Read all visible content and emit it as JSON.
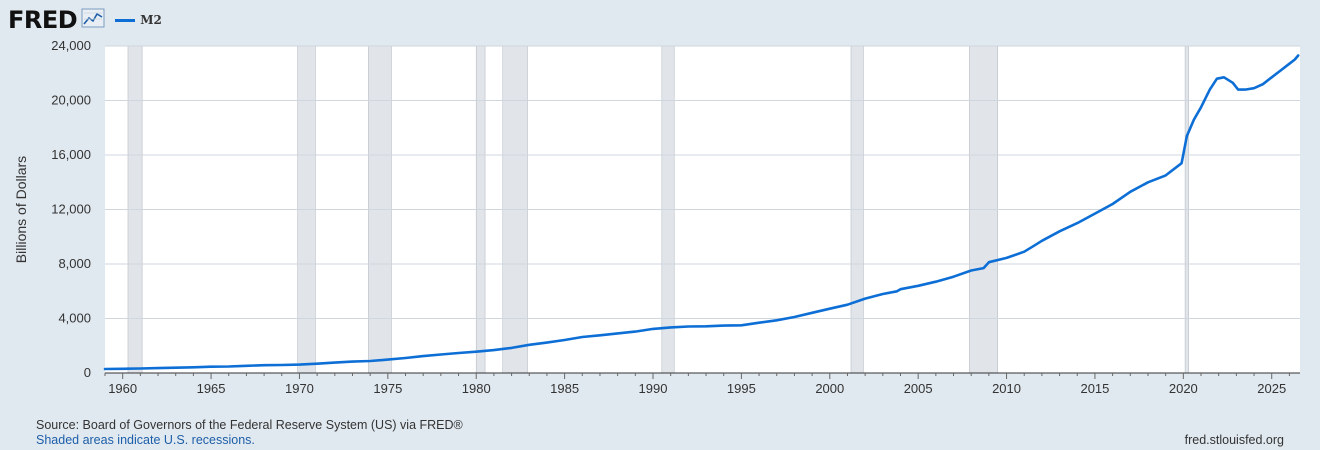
{
  "header": {
    "logo": "FRED",
    "legend": [
      {
        "label": "M2",
        "color": "#0d6fd6"
      }
    ]
  },
  "chart_data": {
    "type": "line",
    "title": "",
    "xlabel": "",
    "ylabel": "Billions of Dollars",
    "xlim": [
      1959.0,
      2026.6
    ],
    "ylim": [
      0,
      24000
    ],
    "x_ticks": [
      "1960",
      "1965",
      "1970",
      "1975",
      "1980",
      "1985",
      "1990",
      "1995",
      "2000",
      "2005",
      "2010",
      "2015",
      "2020",
      "2025"
    ],
    "y_ticks": [
      "0",
      "4,000",
      "8,000",
      "12,000",
      "16,000",
      "20,000",
      "24,000"
    ],
    "grid": true,
    "legend_position": "top-left",
    "recessions": [
      [
        1960.3,
        1961.1
      ],
      [
        1969.9,
        1970.9
      ],
      [
        1973.9,
        1975.2
      ],
      [
        1980.0,
        1980.5
      ],
      [
        1981.5,
        1982.9
      ],
      [
        1990.5,
        1991.2
      ],
      [
        2001.2,
        2001.9
      ],
      [
        2007.9,
        2009.5
      ],
      [
        2020.1,
        2020.3
      ]
    ],
    "recession_color": "#e1e5ea",
    "series": [
      {
        "name": "M2",
        "color": "#0d6fd6",
        "x": [
          1959.0,
          1960,
          1961,
          1962,
          1963,
          1964,
          1965,
          1966,
          1967,
          1968,
          1969,
          1970,
          1971,
          1972,
          1973,
          1974,
          1975,
          1976,
          1977,
          1978,
          1979,
          1980,
          1981,
          1982,
          1983,
          1984,
          1985,
          1986,
          1987,
          1988,
          1989,
          1990,
          1991,
          1992,
          1993,
          1994,
          1995,
          1996,
          1997,
          1998,
          1999,
          2000,
          2001,
          2002,
          2003,
          2003.8,
          2004,
          2005,
          2006,
          2007,
          2008,
          2008.7,
          2009,
          2010,
          2011,
          2011.5,
          2012,
          2013,
          2014,
          2015,
          2016,
          2017,
          2018,
          2019,
          2019.9,
          2020.2,
          2020.4,
          2020.6,
          2021,
          2021.5,
          2021.9,
          2022.3,
          2022.8,
          2023.1,
          2023.5,
          2024,
          2024.5,
          2025,
          2025.5,
          2026,
          2026.3,
          2026.5
        ],
        "y": [
          290,
          305,
          330,
          360,
          390,
          420,
          460,
          480,
          525,
          570,
          590,
          620,
          680,
          760,
          840,
          880,
          980,
          1100,
          1240,
          1360,
          1470,
          1560,
          1680,
          1840,
          2070,
          2230,
          2420,
          2640,
          2770,
          2910,
          3040,
          3240,
          3350,
          3410,
          3430,
          3480,
          3500,
          3690,
          3870,
          4110,
          4420,
          4720,
          5010,
          5460,
          5800,
          6000,
          6150,
          6400,
          6700,
          7070,
          7520,
          7700,
          8130,
          8450,
          8900,
          9300,
          9700,
          10400,
          11000,
          11700,
          12400,
          13300,
          14000,
          14500,
          15400,
          17400,
          18000,
          18600,
          19500,
          20800,
          21600,
          21700,
          21300,
          20800,
          20800,
          20900,
          21200,
          21700,
          22200,
          22700,
          23000,
          23300
        ]
      }
    ]
  },
  "footer": {
    "source": "Source: Board of Governors of the Federal Reserve System (US) via FRED®",
    "notes": "Shaded areas indicate U.S. recessions.",
    "site": "fred.stlouisfed.org"
  }
}
